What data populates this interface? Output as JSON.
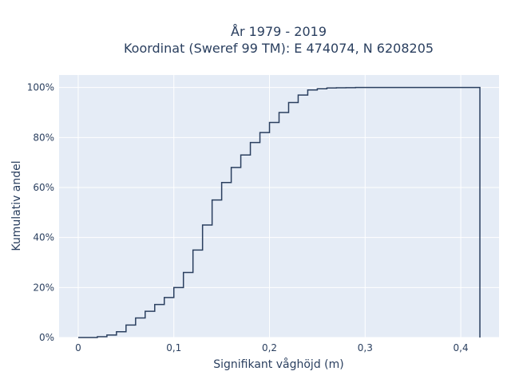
{
  "chart_data": {
    "type": "line",
    "title_lines": [
      "År 1979 - 2019",
      "Koordinat (Sweref 99 TM): E 474074, N 6208205"
    ],
    "xlabel": "Signifikant våghöjd (m)",
    "ylabel": "Kumulativ andel",
    "xlim": [
      -0.02,
      0.44
    ],
    "ylim": [
      0,
      1.05
    ],
    "x_ticks": [
      0,
      0.1,
      0.2,
      0.3,
      0.4
    ],
    "x_tick_labels": [
      "0",
      "0,1",
      "0,2",
      "0,3",
      "0,4"
    ],
    "y_ticks": [
      0,
      0.2,
      0.4,
      0.6,
      0.8,
      1.0
    ],
    "y_tick_labels": [
      "0%",
      "20%",
      "40%",
      "60%",
      "80%",
      "100%"
    ],
    "grid": true,
    "series": [
      {
        "line_color": "#2a3f5f",
        "step": "hv",
        "x": [
          0,
          0.01,
          0.02,
          0.03,
          0.04,
          0.05,
          0.06,
          0.07,
          0.08,
          0.09,
          0.1,
          0.11,
          0.12,
          0.13,
          0.14,
          0.15,
          0.16,
          0.17,
          0.18,
          0.19,
          0.2,
          0.21,
          0.22,
          0.23,
          0.24,
          0.25,
          0.26,
          0.27,
          0.28,
          0.29,
          0.3,
          0.31,
          0.32,
          0.33,
          0.42,
          0.42
        ],
        "y": [
          0.0,
          0.0,
          0.003,
          0.01,
          0.023,
          0.05,
          0.078,
          0.105,
          0.132,
          0.16,
          0.2,
          0.26,
          0.35,
          0.45,
          0.55,
          0.62,
          0.68,
          0.73,
          0.78,
          0.82,
          0.86,
          0.9,
          0.94,
          0.97,
          0.99,
          0.995,
          0.998,
          0.999,
          0.9995,
          1.0,
          1.0,
          1.0,
          1.0,
          1.0,
          1.0,
          0.0
        ]
      }
    ]
  }
}
